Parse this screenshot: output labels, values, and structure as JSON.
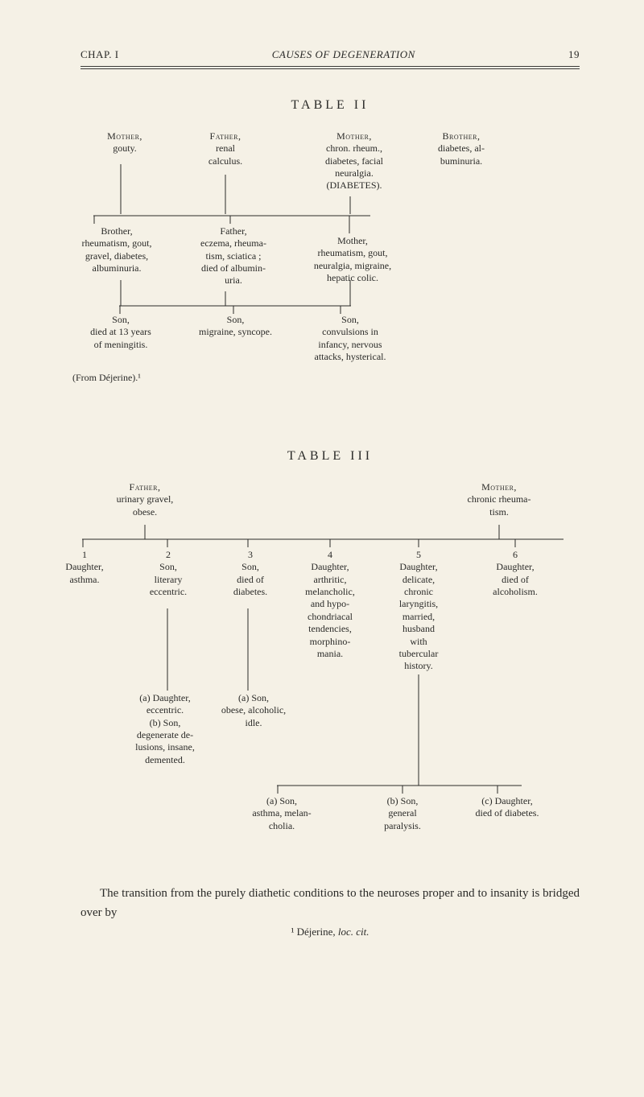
{
  "page": {
    "chap_label": "CHAP. I",
    "running_title": "CAUSES OF DEGENERATION",
    "page_number": "19"
  },
  "table2": {
    "heading": "TABLE II",
    "top_row": {
      "a": {
        "title": "Mother,",
        "desc": "gouty."
      },
      "b": {
        "title": "Father,",
        "desc1": "renal",
        "desc2": "calculus."
      },
      "c": {
        "title": "Mother,",
        "desc1": "chron. rheum.,",
        "desc2": "diabetes, facial",
        "desc3": "neuralgia.",
        "desc4": "(DIABETES)."
      },
      "d": {
        "title": "Brother,",
        "desc1": "diabetes, al-",
        "desc2": "buminuria."
      }
    },
    "mid_row": {
      "a": {
        "title": "Brother,",
        "l1": "rheumatism, gout,",
        "l2": "gravel, diabetes,",
        "l3": "albuminuria."
      },
      "b": {
        "title": "Father,",
        "l1": "eczema, rheuma-",
        "l2": "tism, sciatica ;",
        "l3": "died of albumin-",
        "l4": "uria."
      },
      "c": {
        "title": "Mother,",
        "l1": "rheumatism, gout,",
        "l2": "neuralgia, migraine,",
        "l3": "hepatic colic."
      }
    },
    "bottom_row": {
      "a": {
        "title": "Son,",
        "l1": "died at 13 years",
        "l2": "of meningitis."
      },
      "b": {
        "title": "Son,",
        "l1": "migraine, syncope."
      },
      "c": {
        "title": "Son,",
        "l1": "convulsions in",
        "l2": "infancy, nervous",
        "l3": "attacks, hysterical."
      }
    },
    "source": "(From Déjerine).¹"
  },
  "table3": {
    "heading": "TABLE III",
    "parents": {
      "father": {
        "title": "Father,",
        "l1": "urinary gravel,",
        "l2": "obese."
      },
      "mother": {
        "title": "Mother,",
        "l1": "chronic rheuma-",
        "l2": "tism."
      }
    },
    "children": [
      {
        "n": "1",
        "title": "Daughter,",
        "l1": "asthma."
      },
      {
        "n": "2",
        "title": "Son,",
        "l1": "literary",
        "l2": "eccentric."
      },
      {
        "n": "3",
        "title": "Son,",
        "l1": "died of",
        "l2": "diabetes."
      },
      {
        "n": "4",
        "title": "Daughter,",
        "l1": "arthritic,",
        "l2": "melancholic,",
        "l3": "and hypo-",
        "l4": "chondriacal",
        "l5": "tendencies,",
        "l6": "morphino-",
        "l7": "mania."
      },
      {
        "n": "5",
        "title": "Daughter,",
        "l1": "delicate,",
        "l2": "chronic",
        "l3": "laryngitis,",
        "l4": "married,",
        "l5": "husband",
        "l6": "with",
        "l7": "tubercular",
        "l8": "history."
      },
      {
        "n": "6",
        "title": "Daughter,",
        "l1": "died of",
        "l2": "alcoholism."
      }
    ],
    "grandchildren_left": {
      "a": {
        "label": "(a) Daughter,",
        "l1": "eccentric."
      },
      "b": {
        "label": "(b) Son,",
        "l1": "degenerate de-",
        "l2": "lusions, insane,",
        "l3": "demented."
      }
    },
    "grandchildren_mid": {
      "a": {
        "label": "(a) Son,",
        "l1": "obese, alcoholic,",
        "l2": "idle."
      }
    },
    "grandchildren_bottom": {
      "a": {
        "label": "(a) Son,",
        "l1": "asthma, melan-",
        "l2": "cholia."
      },
      "b": {
        "label": "(b) Son,",
        "l1": "general",
        "l2": "paralysis."
      },
      "c": {
        "label": "(c) Daughter,",
        "l1": "died of diabetes."
      }
    }
  },
  "body": {
    "para": "The transition from the purely diathetic conditions to the neuroses proper and to insanity is bridged over by",
    "footnote": "¹ Déjerine, loc. cit."
  },
  "style": {
    "font_body_pt": 15,
    "font_tree_pt": 12,
    "text_color": "#2a2a28",
    "background_color": "#f5f1e6",
    "rule_color": "#3a3a38"
  }
}
